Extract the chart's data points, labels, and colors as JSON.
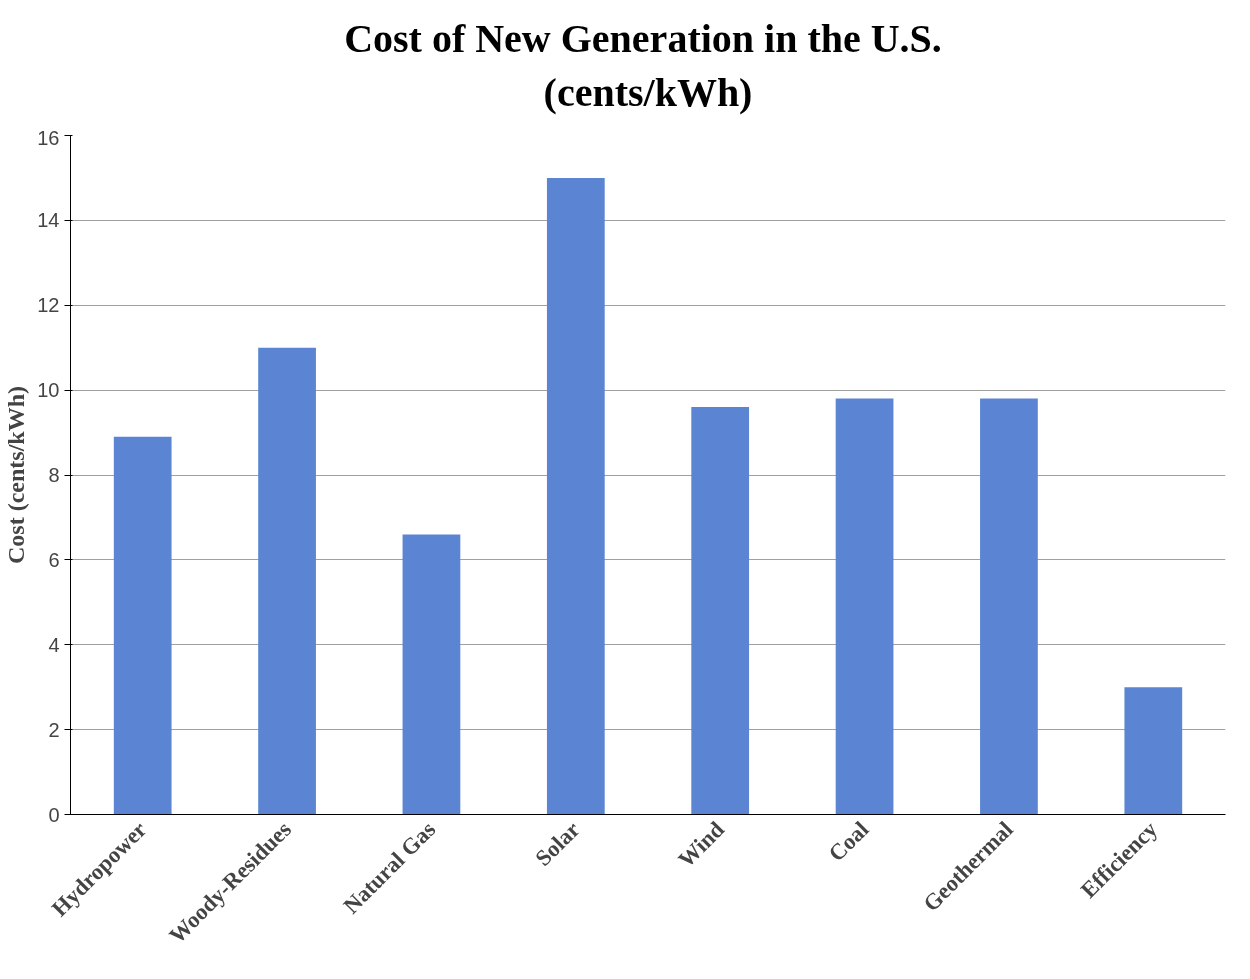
{
  "chart_data": {
    "type": "bar",
    "title": "Cost of  New Generation in the U.S.\n(cents/kWh)",
    "ylabel": "Cost (cents/kWh)",
    "categories": [
      "Hydropower",
      "Woody-Residues",
      "Natural Gas",
      "Solar",
      "Wind",
      "Coal",
      "Geothermal",
      "Efficiency"
    ],
    "values": [
      8.9,
      11,
      6.6,
      15,
      9.6,
      9.8,
      9.8,
      3.0
    ],
    "color": "#5b85d2",
    "ylim": [
      0,
      16
    ],
    "yticks": [
      0,
      2,
      4,
      6,
      8,
      10,
      12,
      14,
      16
    ],
    "grid": "y"
  }
}
